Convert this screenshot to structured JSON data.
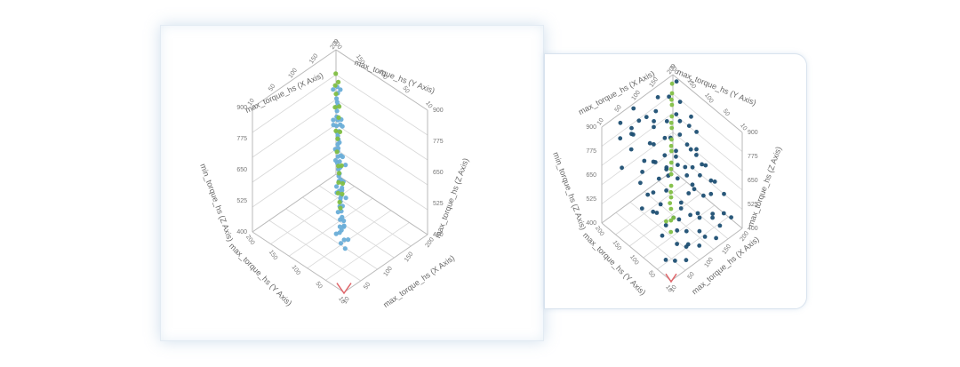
{
  "chart_data": [
    {
      "type": "scatter",
      "subtype": "3d",
      "x_axis_label": "max_torque_hs (X Axis)",
      "y_axis_label": "max_torque_hs (Y Axis)",
      "z_axis_label": "min_torque_hs (Z Axis)",
      "z_axis_label_right": "max_torque_hs (Z Axis)",
      "x_axis_label_front": "max_torque_hs (X Axis)",
      "y_axis_label_front": "max_torque_hs (Y Axis)",
      "z_ticks": [
        "900",
        "775",
        "650",
        "525",
        "400"
      ],
      "z_ticks_right": [
        "900",
        "775",
        "650",
        "525",
        "400"
      ],
      "x_ticks": [
        "10",
        "50",
        "100",
        "150",
        "200"
      ],
      "y_ticks": [
        "200",
        "150",
        "100",
        "50",
        "10"
      ],
      "xlim": [
        10,
        200
      ],
      "ylim": [
        10,
        200
      ],
      "zlim": [
        400,
        900
      ],
      "grid": true,
      "colors": {
        "series_a": "#6aaed8",
        "series_b": "#82bf45",
        "corner_marker": "#e0656a"
      },
      "series": [
        {
          "points": [
            [
              60,
              62,
              470
            ],
            [
              65,
              60,
              480
            ],
            [
              70,
              70,
              500
            ],
            [
              72,
              75,
              505
            ],
            [
              78,
              80,
              520
            ],
            [
              80,
              78,
              530
            ],
            [
              85,
              84,
              540
            ],
            [
              88,
              90,
              548
            ],
            [
              90,
              86,
              552
            ],
            [
              95,
              95,
              565
            ],
            [
              98,
              96,
              570
            ],
            [
              100,
              102,
              580
            ],
            [
              104,
              100,
              590
            ],
            [
              108,
              110,
              600
            ],
            [
              110,
              108,
              605
            ],
            [
              115,
              115,
              615
            ],
            [
              118,
              120,
              622
            ],
            [
              120,
              118,
              630
            ],
            [
              125,
              124,
              640
            ],
            [
              128,
              130,
              648
            ],
            [
              130,
              126,
              655
            ],
            [
              135,
              136,
              665
            ],
            [
              138,
              140,
              672
            ],
            [
              140,
              138,
              680
            ],
            [
              145,
              146,
              690
            ],
            [
              150,
              148,
              700
            ],
            [
              152,
              155,
              710
            ],
            [
              155,
              150,
              718
            ],
            [
              160,
              162,
              728
            ],
            [
              165,
              166,
              740
            ],
            [
              168,
              170,
              748
            ],
            [
              170,
              168,
              755
            ],
            [
              175,
              176,
              765
            ],
            [
              180,
              178,
              778
            ],
            [
              62,
              55,
              455
            ],
            [
              68,
              72,
              490
            ],
            [
              76,
              70,
              510
            ],
            [
              82,
              88,
              535
            ],
            [
              92,
              92,
              560
            ],
            [
              102,
              98,
              585
            ],
            [
              112,
              114,
              610
            ],
            [
              122,
              126,
              635
            ],
            [
              132,
              134,
              660
            ],
            [
              142,
              142,
              685
            ],
            [
              148,
              150,
              695
            ],
            [
              158,
              158,
              722
            ],
            [
              172,
              172,
              760
            ],
            [
              185,
              184,
              790
            ],
            [
              70,
              65,
              520
            ],
            [
              86,
              80,
              505
            ],
            [
              96,
              104,
              600
            ],
            [
              116,
              108,
              590
            ],
            [
              126,
              134,
              675
            ],
            [
              136,
              128,
              640
            ],
            [
              146,
              156,
              720
            ],
            [
              162,
              152,
              700
            ],
            [
              58,
              70,
              500
            ],
            [
              74,
              60,
              470
            ],
            [
              90,
              98,
              590
            ],
            [
              104,
              92,
              560
            ],
            [
              118,
              126,
              650
            ],
            [
              134,
              120,
              620
            ],
            [
              150,
              160,
              730
            ],
            [
              166,
              158,
              715
            ],
            [
              176,
              184,
              790
            ],
            [
              188,
              180,
              780
            ]
          ]
        },
        {
          "points": [
            [
              90,
              92,
              560
            ],
            [
              95,
              100,
              580
            ],
            [
              100,
              96,
              575
            ],
            [
              105,
              108,
              600
            ],
            [
              110,
              104,
              595
            ],
            [
              120,
              122,
              630
            ],
            [
              125,
              120,
              628
            ],
            [
              130,
              134,
              660
            ],
            [
              140,
              142,
              690
            ],
            [
              145,
              150,
              705
            ],
            [
              150,
              146,
              700
            ],
            [
              160,
              158,
              730
            ],
            [
              165,
              170,
              750
            ],
            [
              170,
              166,
              752
            ],
            [
              178,
              180,
              775
            ],
            [
              185,
              188,
              790
            ],
            [
              190,
              186,
              800
            ],
            [
              195,
              196,
              815
            ],
            [
              85,
              86,
              550
            ],
            [
              115,
              116,
              615
            ]
          ]
        }
      ]
    },
    {
      "type": "scatter",
      "subtype": "3d",
      "x_axis_label": "max_torque_hs (X Axis)",
      "y_axis_label": "max_torque_hs (Y Axis)",
      "z_axis_label": "min_torque_hs (Z Axis)",
      "z_axis_label_right": "max_torque_hs (Z Axis)",
      "x_axis_label_front": "max_torque_hs (X Axis)",
      "y_axis_label_front": "max_torque_hs (Y Axis)",
      "z_ticks": [
        "900",
        "775",
        "650",
        "525",
        "400"
      ],
      "z_ticks_right": [
        "900",
        "775",
        "650",
        "525",
        "400"
      ],
      "x_ticks": [
        "10",
        "50",
        "100",
        "150",
        "200"
      ],
      "y_ticks": [
        "200",
        "150",
        "100",
        "50",
        "10"
      ],
      "xlim": [
        10,
        200
      ],
      "ylim": [
        10,
        200
      ],
      "zlim": [
        400,
        900
      ],
      "grid": true,
      "colors": {
        "series_a": "#1d4f73",
        "series_b": "#82bf45",
        "corner_marker": "#e0656a"
      },
      "series": [
        {
          "points": [
            [
              40,
              150,
              820
            ],
            [
              55,
              160,
              860
            ],
            [
              70,
              120,
              760
            ],
            [
              80,
              170,
              880
            ],
            [
              95,
              110,
              700
            ],
            [
              110,
              180,
              840
            ],
            [
              120,
              140,
              780
            ],
            [
              130,
              90,
              650
            ],
            [
              145,
              160,
              800
            ],
            [
              160,
              120,
              720
            ],
            [
              170,
              180,
              860
            ],
            [
              185,
              140,
              750
            ],
            [
              30,
              80,
              620
            ],
            [
              45,
              60,
              560
            ],
            [
              60,
              90,
              600
            ],
            [
              75,
              70,
              540
            ],
            [
              90,
              50,
              480
            ],
            [
              105,
              80,
              560
            ],
            [
              115,
              40,
              460
            ],
            [
              130,
              60,
              500
            ],
            [
              145,
              90,
              580
            ],
            [
              160,
              50,
              470
            ],
            [
              175,
              70,
              520
            ],
            [
              190,
              100,
              600
            ],
            [
              35,
              120,
              700
            ],
            [
              50,
              100,
              660
            ],
            [
              65,
              140,
              740
            ],
            [
              85,
              130,
              720
            ],
            [
              100,
              150,
              760
            ],
            [
              125,
              110,
              680
            ],
            [
              140,
              130,
              700
            ],
            [
              155,
              100,
              640
            ],
            [
              170,
              120,
              680
            ],
            [
              185,
              80,
              560
            ],
            [
              25,
              40,
              440
            ],
            [
              40,
              30,
              430
            ],
            [
              60,
              20,
              420
            ],
            [
              80,
              35,
              450
            ],
            [
              100,
              25,
              430
            ],
            [
              120,
              30,
              440
            ],
            [
              140,
              20,
              420
            ],
            [
              160,
              30,
              440
            ],
            [
              180,
              40,
              460
            ],
            [
              200,
              60,
              500
            ],
            [
              30,
              170,
              860
            ],
            [
              50,
              190,
              880
            ],
            [
              70,
              180,
              840
            ],
            [
              90,
              195,
              890
            ],
            [
              110,
              160,
              820
            ],
            [
              130,
              175,
              850
            ],
            [
              150,
              190,
              870
            ],
            [
              170,
              150,
              780
            ],
            [
              190,
              170,
              820
            ],
            [
              45,
              110,
              640
            ],
            [
              65,
              50,
              520
            ],
            [
              85,
              100,
              620
            ],
            [
              105,
              120,
              680
            ],
            [
              125,
              80,
              580
            ],
            [
              145,
              110,
              640
            ],
            [
              165,
              90,
              600
            ],
            [
              185,
              120,
              660
            ],
            [
              35,
              60,
              520
            ],
            [
              55,
              40,
              480
            ],
            [
              75,
              110,
              680
            ],
            [
              95,
              70,
              560
            ],
            [
              115,
              100,
              640
            ],
            [
              135,
              140,
              760
            ],
            [
              155,
              70,
              540
            ],
            [
              175,
              110,
              660
            ],
            [
              195,
              130,
              720
            ],
            [
              50,
              130,
              720
            ],
            [
              70,
              30,
              460
            ],
            [
              90,
              150,
              780
            ],
            [
              110,
              60,
              520
            ],
            [
              130,
              120,
              700
            ],
            [
              150,
              40,
              480
            ],
            [
              170,
              160,
              800
            ],
            [
              190,
              30,
              440
            ],
            [
              60,
              170,
              840
            ],
            [
              80,
              60,
              540
            ],
            [
              100,
              110,
              660
            ],
            [
              120,
              170,
              820
            ],
            [
              140,
              80,
              580
            ],
            [
              160,
              140,
              740
            ],
            [
              180,
              100,
              620
            ],
            [
              200,
              150,
              760
            ],
            [
              20,
              100,
              620
            ],
            [
              40,
              80,
              600
            ],
            [
              195,
              80,
              540
            ],
            [
              200,
              190,
              880
            ],
            [
              15,
              150,
              760
            ],
            [
              110,
              130,
              720
            ],
            [
              125,
              50,
              500
            ]
          ]
        },
        {
          "points": [
            [
              60,
              62,
              500
            ],
            [
              70,
              72,
              530
            ],
            [
              80,
              82,
              560
            ],
            [
              90,
              92,
              590
            ],
            [
              100,
              102,
              620
            ],
            [
              110,
              112,
              650
            ],
            [
              120,
              122,
              680
            ],
            [
              130,
              132,
              710
            ],
            [
              140,
              142,
              740
            ],
            [
              150,
              152,
              770
            ],
            [
              160,
              162,
              800
            ],
            [
              170,
              172,
              830
            ],
            [
              180,
              182,
              860
            ],
            [
              190,
              192,
              880
            ],
            [
              75,
              70,
              540
            ],
            [
              95,
              98,
              600
            ],
            [
              115,
              118,
              660
            ],
            [
              135,
              138,
              720
            ],
            [
              155,
              158,
              780
            ],
            [
              175,
              178,
              840
            ],
            [
              65,
              80,
              520
            ],
            [
              85,
              90,
              570
            ]
          ]
        }
      ]
    }
  ]
}
